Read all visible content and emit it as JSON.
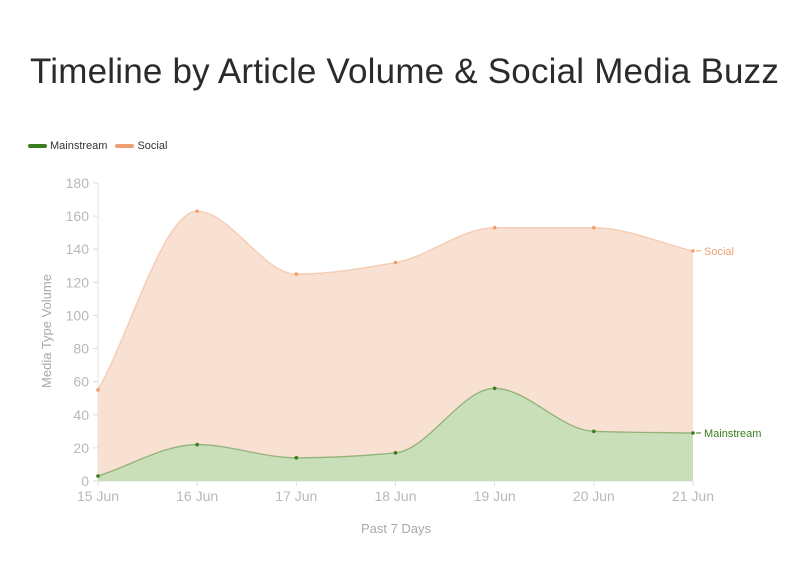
{
  "chart_data": {
    "type": "area",
    "title": "Timeline by Article Volume & Social Media Buzz",
    "xlabel": "Past 7 Days",
    "ylabel": "Media Type Volume",
    "categories": [
      "15 Jun",
      "16 Jun",
      "17 Jun",
      "18 Jun",
      "19 Jun",
      "20 Jun",
      "21 Jun"
    ],
    "ylim": [
      0,
      180
    ],
    "yticks": [
      "0",
      "20",
      "40",
      "60",
      "80",
      "100",
      "120",
      "140",
      "160",
      "180"
    ],
    "series": [
      {
        "name": "Mainstream",
        "values": [
          3,
          22,
          14,
          17,
          56,
          30,
          29
        ],
        "color": "#3a7d1c",
        "fill": "#c8dfba",
        "end_label": "Mainstream"
      },
      {
        "name": "Social",
        "values": [
          55,
          163,
          125,
          132,
          153,
          153,
          139
        ],
        "color": "#f0a070",
        "fill": "#f8e0d2",
        "end_label": "Social"
      }
    ],
    "legend_position": "top-left",
    "grid": false
  }
}
